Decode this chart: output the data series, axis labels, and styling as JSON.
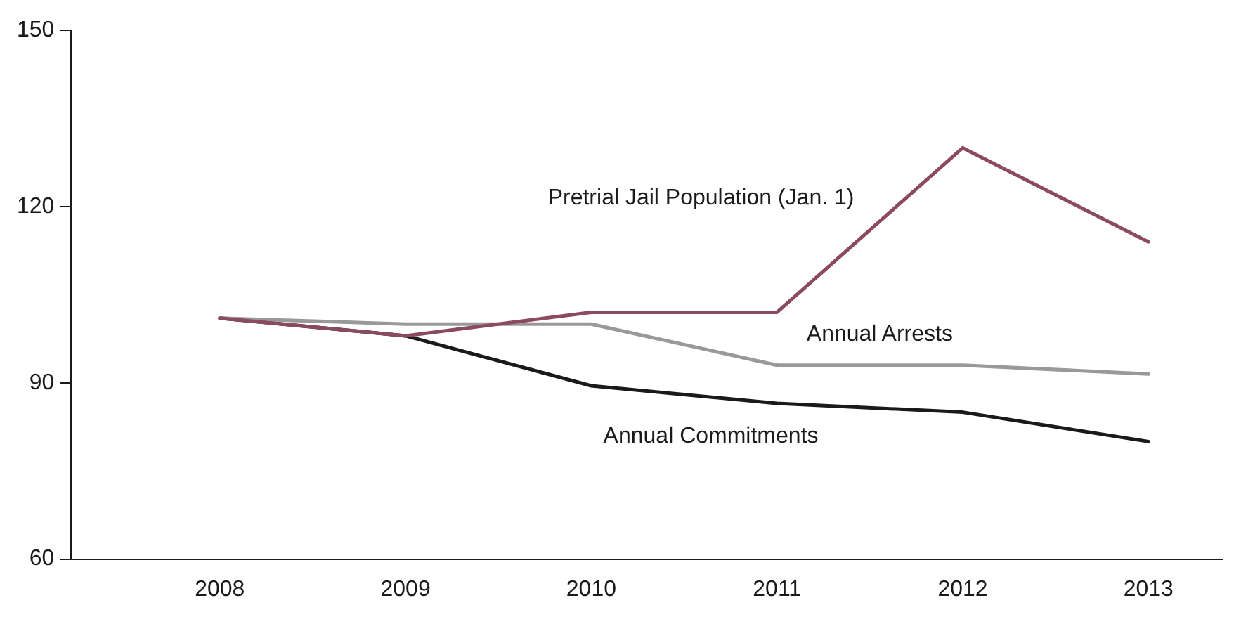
{
  "chart_data": {
    "type": "line",
    "x": [
      2008,
      2009,
      2010,
      2011,
      2012,
      2013
    ],
    "xlim": [
      2007.2,
      2013.4
    ],
    "xticks": [
      2008,
      2009,
      2010,
      2011,
      2012,
      2013
    ],
    "ylim": [
      60,
      150
    ],
    "yticks": [
      60,
      90,
      120,
      150
    ],
    "grid": false,
    "legend": false,
    "marker": "none",
    "line_style": "solid",
    "series": [
      {
        "name": "Pretrial Jail Population (Jan. 1)",
        "color": "#8b4a62",
        "values": [
          101,
          98,
          102,
          102,
          130,
          114
        ]
      },
      {
        "name": "Annual Arrests",
        "color": "#999999",
        "values": [
          101,
          100,
          100,
          93,
          93,
          91.5
        ]
      },
      {
        "name": "Annual Commitments",
        "color": "#1a1a1a",
        "values": [
          101,
          98,
          89.5,
          86.5,
          85,
          80
        ]
      }
    ]
  }
}
